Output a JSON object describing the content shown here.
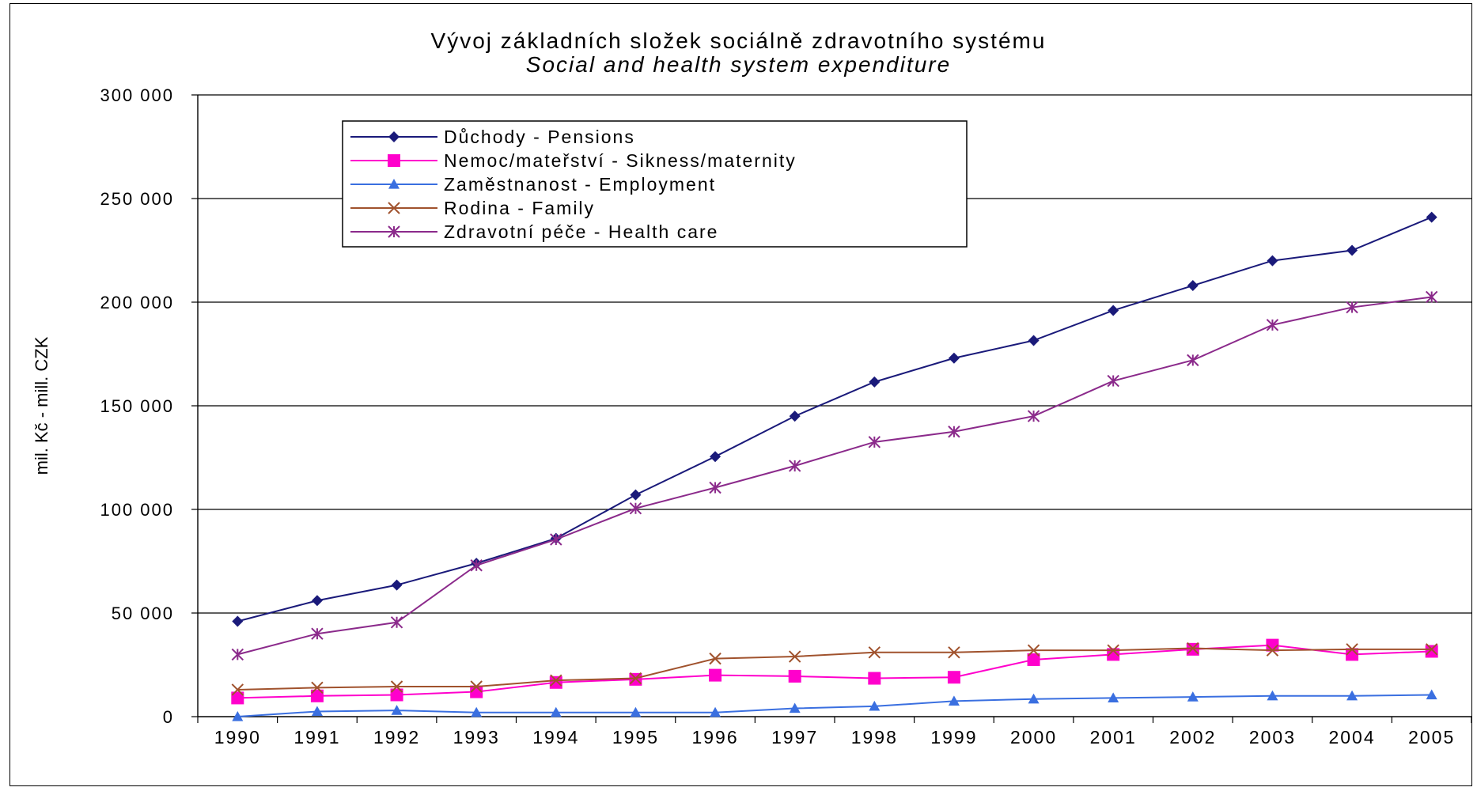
{
  "chart_data": {
    "type": "line",
    "title": "Vývoj základních složek sociálně zdravotního systému",
    "subtitle": "Social and health system expenditure",
    "xlabel": "",
    "ylabel": "mil. Kč - mill. CZK",
    "ylim": [
      0,
      300000
    ],
    "yticks": [
      "0",
      "50 000",
      "100 000",
      "150 000",
      "200 000",
      "250 000",
      "300 000"
    ],
    "ytick_values": [
      0,
      50000,
      100000,
      150000,
      200000,
      250000,
      300000
    ],
    "categories": [
      "1990",
      "1991",
      "1992",
      "1993",
      "1994",
      "1995",
      "1996",
      "1997",
      "1998",
      "1999",
      "2000",
      "2001",
      "2002",
      "2003",
      "2004",
      "2005"
    ],
    "grid": "horizontal",
    "legend_position": "top-left",
    "series": [
      {
        "name": "Důchody - Pensions",
        "color": "#1a1a7a",
        "marker": "diamond",
        "values": [
          46000,
          56000,
          63500,
          74000,
          86000,
          107000,
          125500,
          145000,
          161500,
          173000,
          181500,
          196000,
          208000,
          220000,
          225000,
          241000
        ]
      },
      {
        "name": "Nemoc/mateřství - Sikness/maternity",
        "color": "#ff00cc",
        "marker": "square",
        "values": [
          9000,
          10000,
          10500,
          12000,
          16500,
          18000,
          20000,
          19500,
          18500,
          19000,
          27500,
          30000,
          32500,
          34500,
          30000,
          31500
        ]
      },
      {
        "name": "Zaměstnanost - Employment",
        "color": "#3a6fe0",
        "marker": "triangle",
        "values": [
          0,
          2500,
          3000,
          2000,
          2000,
          2000,
          2000,
          4000,
          5000,
          7500,
          8500,
          9000,
          9500,
          10000,
          10000,
          10500
        ]
      },
      {
        "name": "Rodina - Family",
        "color": "#a0522d",
        "marker": "x",
        "values": [
          13000,
          14000,
          14500,
          14500,
          17500,
          18500,
          28000,
          29000,
          31000,
          31000,
          32000,
          32000,
          33000,
          32000,
          32500,
          32500
        ]
      },
      {
        "name": "Zdravotní péče - Health care",
        "color": "#8b2a8b",
        "marker": "star",
        "values": [
          30000,
          40000,
          45500,
          73000,
          85500,
          100500,
          110500,
          121000,
          132500,
          137500,
          145000,
          162000,
          172000,
          189000,
          197500,
          202500
        ]
      }
    ]
  }
}
